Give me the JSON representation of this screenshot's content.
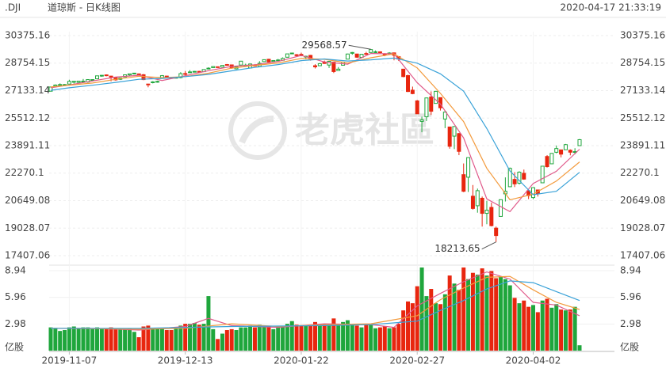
{
  "header": {
    "symbol": ".DJI",
    "name": "道琼斯 - 日K线图",
    "timestamp": "2020-04-17 21:33:19"
  },
  "watermark": "老虎社區",
  "chart_data": [
    {
      "type": "candlestick",
      "categories": [
        null,
        null,
        null,
        null,
        "2019-11-07",
        null,
        null,
        null,
        null,
        null,
        null,
        null,
        null,
        null,
        null,
        null,
        null,
        null,
        null,
        null,
        null,
        null,
        null,
        null,
        null,
        null,
        null,
        null,
        null,
        "2019-12-13",
        null,
        null,
        null,
        null,
        null,
        null,
        null,
        null,
        null,
        null,
        null,
        null,
        null,
        null,
        null,
        null,
        null,
        null,
        null,
        null,
        null,
        null,
        null,
        null,
        "2020-01-22",
        null,
        null,
        null,
        null,
        null,
        null,
        null,
        null,
        null,
        null,
        null,
        null,
        null,
        null,
        null,
        null,
        null,
        null,
        null,
        null,
        null,
        null,
        null,
        null,
        "2020-02-27",
        null,
        null,
        null,
        null,
        null,
        null,
        null,
        null,
        null,
        null,
        null,
        null,
        null,
        null,
        null,
        null,
        null,
        null,
        null,
        null,
        null,
        null,
        null,
        null,
        "2020-04-02",
        null,
        null,
        null,
        null,
        null,
        null,
        null,
        null,
        null,
        null
      ],
      "candles": [
        [
          27100,
          27360,
          27080,
          27347
        ],
        [
          27400,
          27500,
          27380,
          27462
        ],
        [
          27470,
          27560,
          27440,
          27492
        ],
        [
          27480,
          27520,
          27410,
          27492
        ],
        [
          27520,
          27775,
          27500,
          27675
        ],
        [
          27630,
          27690,
          27550,
          27681
        ],
        [
          27620,
          27700,
          27560,
          27691
        ],
        [
          27680,
          27820,
          27640,
          27691
        ],
        [
          27640,
          27800,
          27600,
          27784
        ],
        [
          27760,
          27800,
          27680,
          27782
        ],
        [
          27830,
          28010,
          27820,
          28005
        ],
        [
          28000,
          28050,
          27950,
          28036
        ],
        [
          28060,
          28090,
          27980,
          28036
        ],
        [
          27990,
          28000,
          27680,
          27934
        ],
        [
          27920,
          27940,
          27720,
          27767
        ],
        [
          27800,
          27900,
          27760,
          27876
        ],
        [
          27940,
          28070,
          27920,
          28066
        ],
        [
          28060,
          28125,
          28020,
          28122
        ],
        [
          28140,
          28175,
          28100,
          28164
        ],
        [
          28120,
          28140,
          28030,
          28051
        ],
        [
          28070,
          28110,
          27750,
          27783
        ],
        [
          27520,
          27540,
          27330,
          27503
        ],
        [
          27600,
          27690,
          27560,
          27650
        ],
        [
          27670,
          27720,
          27600,
          27678
        ],
        [
          27860,
          28050,
          27850,
          28015
        ],
        [
          27990,
          28010,
          27890,
          27910
        ],
        [
          27900,
          27950,
          27830,
          27881
        ],
        [
          27890,
          27930,
          27870,
          27911
        ],
        [
          27900,
          28220,
          27860,
          28133
        ],
        [
          28140,
          28290,
          28040,
          28135
        ],
        [
          28200,
          28340,
          28190,
          28236
        ],
        [
          28250,
          28290,
          28240,
          28268
        ],
        [
          28270,
          28300,
          28230,
          28240
        ],
        [
          28250,
          28380,
          28240,
          28377
        ],
        [
          28420,
          28510,
          28400,
          28455
        ],
        [
          28490,
          28580,
          28480,
          28551
        ],
        [
          28540,
          28550,
          28490,
          28516
        ],
        [
          28520,
          28630,
          28510,
          28622
        ],
        [
          28670,
          28700,
          28610,
          28646
        ],
        [
          28650,
          28650,
          28420,
          28462
        ],
        [
          28420,
          28550,
          28380,
          28538
        ],
        [
          28640,
          28870,
          28570,
          28869
        ],
        [
          28630,
          28720,
          28550,
          28635
        ],
        [
          28470,
          28710,
          28460,
          28704
        ],
        [
          28640,
          28690,
          28550,
          28584
        ],
        [
          28560,
          28870,
          28540,
          28745
        ],
        [
          28840,
          28960,
          28830,
          28957
        ],
        [
          28980,
          29010,
          28800,
          28824
        ],
        [
          28850,
          28910,
          28820,
          28907
        ],
        [
          28900,
          29000,
          28880,
          28940
        ],
        [
          28920,
          29090,
          28900,
          29030
        ],
        [
          29100,
          29300,
          29090,
          29298
        ],
        [
          29340,
          29370,
          29280,
          29348
        ],
        [
          29250,
          29290,
          29140,
          29196
        ],
        [
          29270,
          29370,
          29160,
          29186
        ],
        [
          29120,
          29190,
          28980,
          29160
        ],
        [
          29210,
          29240,
          28900,
          28990
        ],
        [
          28600,
          28690,
          28440,
          28536
        ],
        [
          28600,
          28760,
          28600,
          28723
        ],
        [
          28820,
          28900,
          28710,
          28735
        ],
        [
          28640,
          28870,
          28470,
          28860
        ],
        [
          28810,
          28830,
          28170,
          28256
        ],
        [
          28320,
          28520,
          28320,
          28400
        ],
        [
          28630,
          28840,
          28630,
          28808
        ],
        [
          28990,
          29310,
          28990,
          29291
        ],
        [
          29360,
          29410,
          29250,
          29380
        ],
        [
          29290,
          29310,
          29060,
          29103
        ],
        [
          29090,
          29280,
          29050,
          29276
        ],
        [
          29320,
          29420,
          29250,
          29277
        ],
        [
          29380,
          29568.57,
          29380,
          29551
        ],
        [
          29410,
          29500,
          29350,
          29424
        ],
        [
          29420,
          29450,
          29330,
          29398
        ],
        [
          29280,
          29340,
          29160,
          29232
        ],
        [
          29330,
          29400,
          29310,
          29348
        ],
        [
          29360,
          29370,
          28920,
          29220
        ],
        [
          29140,
          29160,
          28880,
          28992
        ],
        [
          28400,
          28400,
          27920,
          27961
        ],
        [
          28020,
          28070,
          27050,
          27081
        ],
        [
          27160,
          27370,
          26920,
          26957
        ],
        [
          26530,
          26580,
          25760,
          25767
        ],
        [
          25320,
          25600,
          24680,
          25409
        ],
        [
          25590,
          26710,
          25340,
          26703
        ],
        [
          26760,
          27090,
          25700,
          25917
        ],
        [
          26380,
          27100,
          26380,
          27091
        ],
        [
          26720,
          26720,
          25960,
          26121
        ],
        [
          25460,
          25960,
          24920,
          25865
        ],
        [
          24990,
          25010,
          23710,
          23851
        ],
        [
          24450,
          25020,
          23690,
          25018
        ],
        [
          24600,
          24640,
          23330,
          23553
        ],
        [
          22180,
          22840,
          21150,
          21200
        ],
        [
          22030,
          23190,
          21160,
          23186
        ],
        [
          20910,
          21570,
          20120,
          20189
        ],
        [
          20350,
          21360,
          19940,
          21237
        ],
        [
          20790,
          20890,
          19120,
          19899
        ],
        [
          19900,
          20640,
          19260,
          20087
        ],
        [
          20250,
          20530,
          19130,
          19174
        ],
        [
          19030,
          19120,
          18213.65,
          18592
        ],
        [
          19720,
          20710,
          19720,
          20705
        ],
        [
          21050,
          22020,
          20600,
          21201
        ],
        [
          21470,
          22600,
          21450,
          22552
        ],
        [
          21900,
          22330,
          21450,
          21637
        ],
        [
          21680,
          22380,
          21600,
          22327
        ],
        [
          22260,
          22480,
          21880,
          21917
        ],
        [
          21230,
          21230,
          20740,
          20944
        ],
        [
          20830,
          21440,
          20740,
          21413
        ],
        [
          21280,
          21300,
          20890,
          21053
        ],
        [
          21700,
          22700,
          21700,
          22680
        ],
        [
          23250,
          23330,
          22600,
          22654
        ],
        [
          22820,
          23450,
          22820,
          23434
        ],
        [
          23500,
          23900,
          23440,
          23720
        ],
        [
          23640,
          23650,
          23200,
          23390
        ],
        [
          23650,
          23990,
          23650,
          23950
        ],
        [
          23620,
          23670,
          23320,
          23504
        ],
        [
          23510,
          23740,
          23380,
          23538
        ],
        [
          23890,
          24280,
          23890,
          24242
        ]
      ],
      "up_color": "#1fa63c",
      "down_color": "#e8260f",
      "ylim": [
        17407.06,
        30375.16
      ],
      "yticks": [
        30375.16,
        28754.15,
        27133.14,
        25512.12,
        23891.11,
        22270.1,
        20649.08,
        19028.07,
        17407.06
      ],
      "grid": true,
      "ma_lines": [
        {
          "color": "#e05a8a",
          "x": [
            0,
            4,
            9,
            14,
            19,
            24,
            29,
            34,
            39,
            44,
            49,
            54,
            59,
            64,
            69,
            74,
            79,
            84,
            89,
            94,
            99,
            104,
            109,
            114
          ],
          "values": [
            27300,
            27470,
            27700,
            27930,
            28040,
            27730,
            28010,
            28310,
            28560,
            28660,
            28850,
            29210,
            28820,
            28690,
            29320,
            29300,
            27600,
            26340,
            24350,
            20750,
            20000,
            21660,
            22380,
            23680
          ]
        },
        {
          "color": "#f39a3c",
          "x": [
            0,
            9,
            14,
            19,
            24,
            29,
            34,
            39,
            44,
            49,
            54,
            59,
            64,
            69,
            74,
            79,
            84,
            89,
            94,
            99,
            104,
            109,
            114
          ],
          "values": [
            27350,
            27580,
            27800,
            27980,
            27900,
            27960,
            28160,
            28460,
            28620,
            28760,
            29030,
            28980,
            28760,
            29070,
            29300,
            28470,
            26970,
            25310,
            22550,
            20700,
            21030,
            21800,
            22930
          ]
        },
        {
          "color": "#3aa2d8",
          "x": [
            0,
            4,
            9,
            14,
            19,
            24,
            29,
            34,
            39,
            44,
            49,
            54,
            59,
            64,
            69,
            74,
            79,
            84,
            89,
            94,
            99,
            104,
            109,
            114
          ],
          "values": [
            27150,
            27300,
            27450,
            27620,
            27800,
            27850,
            27960,
            28090,
            28300,
            28500,
            28670,
            28900,
            29000,
            28880,
            28950,
            29050,
            28750,
            28120,
            27100,
            24900,
            22400,
            21000,
            21200,
            22320
          ]
        }
      ]
    },
    {
      "type": "bar",
      "unit": "亿股",
      "values": [
        2.6,
        2.5,
        2.2,
        2.3,
        2.6,
        2.7,
        2.5,
        2.6,
        2.6,
        2.4,
        2.6,
        2.5,
        2.5,
        2.6,
        2.5,
        2.4,
        2.4,
        2.5,
        2.1,
        1.5,
        2.7,
        2.8,
        2.5,
        2.4,
        2.5,
        2.3,
        2.3,
        2.6,
        2.8,
        3.0,
        3.0,
        3.1,
        2.9,
        3.0,
        6.1,
        2.4,
        1.3,
        1.9,
        2.3,
        2.4,
        2.3,
        2.6,
        2.6,
        2.8,
        2.6,
        2.9,
        2.7,
        2.7,
        2.4,
        2.6,
        2.7,
        3.0,
        3.3,
        2.9,
        2.8,
        2.8,
        2.9,
        3.2,
        2.9,
        3.0,
        3.0,
        3.6,
        3.0,
        3.2,
        3.4,
        3.0,
        2.8,
        2.6,
        3.0,
        3.0,
        2.5,
        2.6,
        2.7,
        2.5,
        2.6,
        3.0,
        4.5,
        5.5,
        5.3,
        7.2,
        9.3,
        6.1,
        6.9,
        5.3,
        5.2,
        6.3,
        8.4,
        7.5,
        6.8,
        9.3,
        8.0,
        8.7,
        8.5,
        9.2,
        8.4,
        8.9,
        8.1,
        8.3,
        8.0,
        7.3,
        5.9,
        5.3,
        5.6,
        4.9,
        5.1,
        4.3,
        5.6,
        5.8,
        4.8,
        5.2,
        4.6,
        4.5,
        4.6,
        4.9,
        0.6
      ],
      "ylim": [
        0,
        9.56
      ],
      "yticks": [
        8.94,
        5.96,
        2.98
      ],
      "ma_lines": [
        {
          "color": "#e05a8a",
          "x": [
            0,
            9,
            19,
            29,
            34,
            39,
            49,
            59,
            69,
            74,
            79,
            84,
            89,
            94,
            99,
            104,
            109,
            114
          ],
          "values": [
            2.5,
            2.5,
            2.3,
            2.7,
            3.6,
            2.8,
            2.6,
            3.0,
            2.9,
            2.6,
            5.0,
            6.4,
            7.7,
            8.8,
            8.0,
            5.4,
            5.1,
            3.9
          ]
        },
        {
          "color": "#f39a3c",
          "x": [
            0,
            19,
            29,
            39,
            49,
            59,
            69,
            79,
            84,
            89,
            94,
            99,
            104,
            109,
            114
          ],
          "values": [
            2.5,
            2.4,
            2.5,
            3.0,
            2.7,
            2.9,
            3.0,
            3.9,
            5.7,
            7.0,
            8.2,
            8.3,
            6.8,
            5.4,
            4.6
          ]
        },
        {
          "color": "#3aa2d8",
          "x": [
            0,
            19,
            39,
            59,
            69,
            79,
            84,
            89,
            94,
            99,
            104,
            109,
            114
          ],
          "values": [
            2.5,
            2.5,
            2.7,
            2.8,
            2.9,
            3.3,
            4.5,
            5.6,
            6.9,
            7.8,
            7.6,
            6.6,
            5.6
          ]
        }
      ]
    }
  ]
}
